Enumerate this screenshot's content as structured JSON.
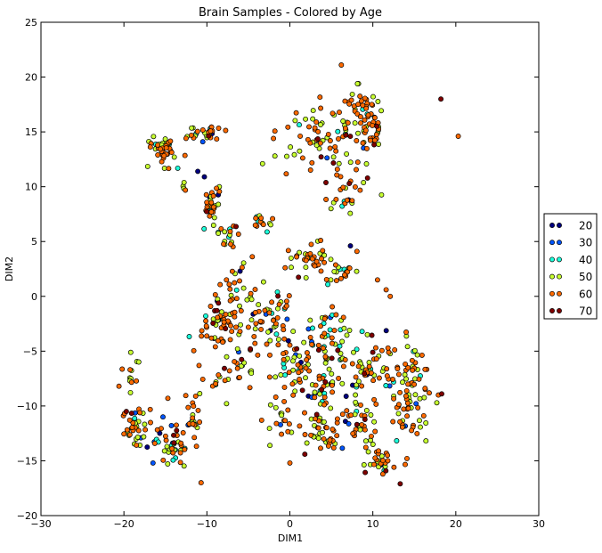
{
  "chart_data": {
    "type": "scatter",
    "title": "Brain Samples - Colored by Age",
    "xlabel": "DIM1",
    "ylabel": "DIM2",
    "xlim": [
      -30,
      30
    ],
    "ylim": [
      -20,
      25
    ],
    "xticks": [
      -30,
      -20,
      -10,
      0,
      10,
      20,
      30
    ],
    "yticks": [
      -20,
      -15,
      -10,
      -5,
      0,
      5,
      10,
      15,
      20,
      25
    ],
    "xtick_labels": [
      "−30",
      "−20",
      "−10",
      "0",
      "10",
      "20",
      "30"
    ],
    "ytick_labels": [
      "−20",
      "−15",
      "−10",
      "−5",
      "0",
      "5",
      "10",
      "15",
      "20",
      "25"
    ],
    "grid": false,
    "legend_position": "outside-right",
    "series": [
      {
        "name": "20",
        "color": "#00007f"
      },
      {
        "name": "30",
        "color": "#0055ff"
      },
      {
        "name": "40",
        "color": "#1cffdb"
      },
      {
        "name": "50",
        "color": "#c7ff30"
      },
      {
        "name": "60",
        "color": "#ff6a00"
      },
      {
        "name": "70",
        "color": "#7f0000"
      }
    ],
    "clusters": [
      {
        "cx": -15.5,
        "cy": 13.2,
        "sx": 1.3,
        "sy": 0.9,
        "n": 45,
        "w": [
          0.0,
          0.02,
          0.1,
          0.25,
          0.6,
          0.03
        ]
      },
      {
        "cx": -10.5,
        "cy": 14.9,
        "sx": 1.5,
        "sy": 0.5,
        "n": 30,
        "w": [
          0.02,
          0.0,
          0.15,
          0.3,
          0.5,
          0.03
        ]
      },
      {
        "cx": -12.8,
        "cy": 9.9,
        "sx": 0.3,
        "sy": 0.3,
        "n": 4,
        "w": [
          0.0,
          0.0,
          0.0,
          0.5,
          0.5,
          0.0
        ]
      },
      {
        "cx": -9.5,
        "cy": 8.0,
        "sx": 0.6,
        "sy": 1.3,
        "n": 30,
        "w": [
          0.05,
          0.0,
          0.05,
          0.3,
          0.55,
          0.05
        ]
      },
      {
        "cx": -7.5,
        "cy": 5.5,
        "sx": 0.9,
        "sy": 0.9,
        "n": 18,
        "w": [
          0.05,
          0.0,
          0.1,
          0.3,
          0.5,
          0.05
        ]
      },
      {
        "cx": -3.3,
        "cy": 6.8,
        "sx": 1.0,
        "sy": 0.6,
        "n": 14,
        "w": [
          0.0,
          0.0,
          0.1,
          0.3,
          0.6,
          0.0
        ]
      },
      {
        "cx": 4.5,
        "cy": 14.0,
        "sx": 3.0,
        "sy": 2.3,
        "n": 75,
        "w": [
          0.02,
          0.03,
          0.08,
          0.3,
          0.53,
          0.04
        ]
      },
      {
        "cx": 8.5,
        "cy": 17.0,
        "sx": 1.3,
        "sy": 1.5,
        "n": 35,
        "w": [
          0.0,
          0.02,
          0.05,
          0.3,
          0.6,
          0.03
        ]
      },
      {
        "cx": 10.0,
        "cy": 14.5,
        "sx": 0.8,
        "sy": 1.5,
        "n": 25,
        "w": [
          0.0,
          0.0,
          0.05,
          0.3,
          0.6,
          0.05
        ]
      },
      {
        "cx": 7.0,
        "cy": 9.5,
        "sx": 1.5,
        "sy": 1.4,
        "n": 25,
        "w": [
          0.02,
          0.0,
          0.05,
          0.35,
          0.53,
          0.05
        ]
      },
      {
        "cx": 2.5,
        "cy": 3.5,
        "sx": 2.5,
        "sy": 1.2,
        "n": 35,
        "w": [
          0.03,
          0.0,
          0.05,
          0.3,
          0.57,
          0.05
        ]
      },
      {
        "cx": 6.0,
        "cy": 2.0,
        "sx": 1.5,
        "sy": 0.8,
        "n": 20,
        "w": [
          0.0,
          0.0,
          0.1,
          0.35,
          0.5,
          0.05
        ]
      },
      {
        "cx": -6.5,
        "cy": 1.0,
        "sx": 1.0,
        "sy": 1.5,
        "n": 15,
        "w": [
          0.0,
          0.0,
          0.05,
          0.3,
          0.6,
          0.05
        ]
      },
      {
        "cx": -8.5,
        "cy": -2.5,
        "sx": 1.8,
        "sy": 2.0,
        "n": 60,
        "w": [
          0.05,
          0.03,
          0.07,
          0.3,
          0.5,
          0.05
        ]
      },
      {
        "cx": -3.0,
        "cy": -2.0,
        "sx": 2.0,
        "sy": 2.0,
        "n": 55,
        "w": [
          0.03,
          0.03,
          0.07,
          0.3,
          0.52,
          0.05
        ]
      },
      {
        "cx": -7.0,
        "cy": -6.5,
        "sx": 2.0,
        "sy": 1.5,
        "n": 30,
        "w": [
          0.03,
          0.03,
          0.05,
          0.35,
          0.5,
          0.04
        ]
      },
      {
        "cx": 0.5,
        "cy": -6.0,
        "sx": 2.0,
        "sy": 2.0,
        "n": 45,
        "w": [
          0.05,
          0.03,
          0.07,
          0.3,
          0.5,
          0.05
        ]
      },
      {
        "cx": 4.5,
        "cy": -3.5,
        "sx": 2.0,
        "sy": 2.0,
        "n": 50,
        "w": [
          0.03,
          0.03,
          0.1,
          0.3,
          0.5,
          0.04
        ]
      },
      {
        "cx": 3.5,
        "cy": -8.5,
        "sx": 1.8,
        "sy": 1.5,
        "n": 35,
        "w": [
          0.03,
          0.02,
          0.05,
          0.35,
          0.5,
          0.05
        ]
      },
      {
        "cx": 9.0,
        "cy": -6.5,
        "sx": 2.0,
        "sy": 1.8,
        "n": 40,
        "w": [
          0.03,
          0.03,
          0.05,
          0.3,
          0.55,
          0.04
        ]
      },
      {
        "cx": 14.0,
        "cy": -7.0,
        "sx": 2.0,
        "sy": 2.0,
        "n": 55,
        "w": [
          0.03,
          0.03,
          0.07,
          0.3,
          0.52,
          0.05
        ]
      },
      {
        "cx": 14.5,
        "cy": -10.5,
        "sx": 1.8,
        "sy": 1.5,
        "n": 35,
        "w": [
          0.02,
          0.02,
          0.05,
          0.35,
          0.51,
          0.05
        ]
      },
      {
        "cx": 8.5,
        "cy": -11.5,
        "sx": 2.0,
        "sy": 1.5,
        "n": 40,
        "w": [
          0.02,
          0.02,
          0.05,
          0.35,
          0.51,
          0.05
        ]
      },
      {
        "cx": 11.0,
        "cy": -14.5,
        "sx": 1.8,
        "sy": 1.2,
        "n": 30,
        "w": [
          0.02,
          0.02,
          0.05,
          0.35,
          0.51,
          0.05
        ]
      },
      {
        "cx": 3.5,
        "cy": -12.5,
        "sx": 2.0,
        "sy": 1.3,
        "n": 35,
        "w": [
          0.03,
          0.02,
          0.05,
          0.35,
          0.5,
          0.05
        ]
      },
      {
        "cx": -1.0,
        "cy": -11.5,
        "sx": 1.5,
        "sy": 1.0,
        "n": 15,
        "w": [
          0.03,
          0.02,
          0.05,
          0.35,
          0.5,
          0.05
        ]
      },
      {
        "cx": -18.5,
        "cy": -12.0,
        "sx": 1.3,
        "sy": 1.3,
        "n": 35,
        "w": [
          0.02,
          0.05,
          0.1,
          0.35,
          0.45,
          0.03
        ]
      },
      {
        "cx": -14.5,
        "cy": -13.5,
        "sx": 1.8,
        "sy": 1.3,
        "n": 45,
        "w": [
          0.03,
          0.05,
          0.1,
          0.3,
          0.48,
          0.04
        ]
      },
      {
        "cx": -11.8,
        "cy": -11.0,
        "sx": 1.0,
        "sy": 1.2,
        "n": 20,
        "w": [
          0.02,
          0.02,
          0.05,
          0.35,
          0.53,
          0.03
        ]
      },
      {
        "cx": -19.0,
        "cy": -7.0,
        "sx": 0.5,
        "sy": 1.2,
        "n": 12,
        "w": [
          0.0,
          0.0,
          0.05,
          0.45,
          0.5,
          0.0
        ]
      }
    ],
    "extra_points": [
      {
        "x": 18.2,
        "y": 18.0,
        "group": 5
      },
      {
        "x": 20.3,
        "y": 14.6,
        "group": 4
      },
      {
        "x": 6.2,
        "y": 21.1,
        "group": 4
      },
      {
        "x": -1.8,
        "y": 12.8,
        "group": 3
      },
      {
        "x": -3.3,
        "y": 12.1,
        "group": 3
      },
      {
        "x": 11.6,
        "y": 0.6,
        "group": 4
      },
      {
        "x": 12.1,
        "y": 0.0,
        "group": 4
      },
      {
        "x": -20.6,
        "y": -8.2,
        "group": 4
      },
      {
        "x": -14.7,
        "y": -9.3,
        "group": 4
      },
      {
        "x": -10.7,
        "y": -17.0,
        "group": 4
      },
      {
        "x": -3.4,
        "y": -11.3,
        "group": 4
      },
      {
        "x": -2.4,
        "y": -13.6,
        "group": 3
      },
      {
        "x": 13.3,
        "y": -17.1,
        "group": 5
      },
      {
        "x": 18.3,
        "y": -8.9,
        "group": 5
      },
      {
        "x": 17.9,
        "y": -9.0,
        "group": 4
      },
      {
        "x": 0.0,
        "y": -15.2,
        "group": 4
      },
      {
        "x": 1.8,
        "y": -14.4,
        "group": 5
      },
      {
        "x": -11.1,
        "y": 11.4,
        "group": 0
      },
      {
        "x": -10.3,
        "y": 10.9,
        "group": 0
      },
      {
        "x": -10.5,
        "y": 14.1,
        "group": 1
      },
      {
        "x": -6.0,
        "y": 2.3,
        "group": 0
      },
      {
        "x": -1.5,
        "y": 0.4,
        "group": 2
      },
      {
        "x": 8.7,
        "y": -3.2,
        "group": 2
      },
      {
        "x": 7.3,
        "y": 4.6,
        "group": 0
      },
      {
        "x": -16.5,
        "y": -15.2,
        "group": 1
      },
      {
        "x": -15.3,
        "y": -11.0,
        "group": 1
      }
    ]
  }
}
